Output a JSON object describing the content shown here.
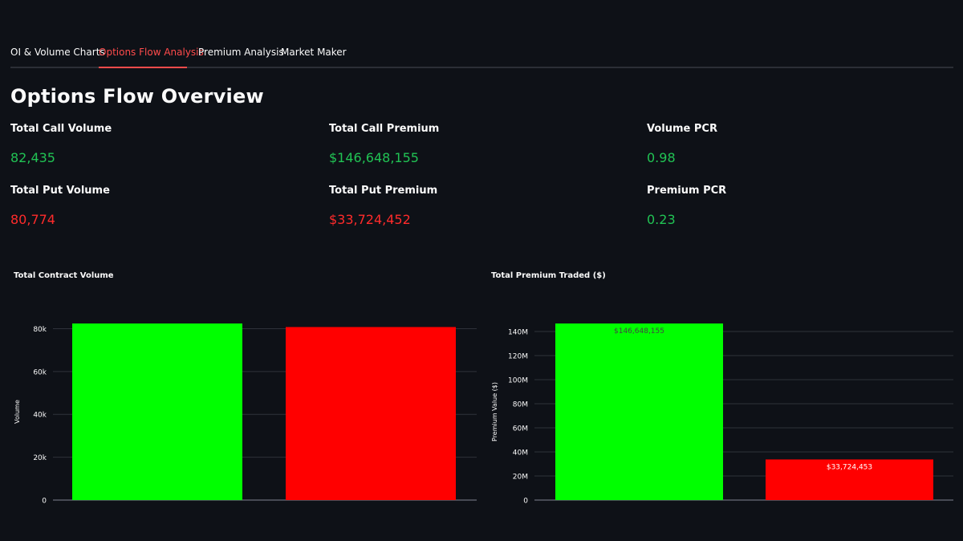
{
  "tabs": [
    {
      "label": "OI & Volume Charts",
      "active": false
    },
    {
      "label": "Options Flow Analysis",
      "active": true
    },
    {
      "label": "Premium Analysis",
      "active": false
    },
    {
      "label": "Market Maker",
      "active": false
    }
  ],
  "page_title": "Options Flow Overview",
  "metrics": {
    "total_call_volume": {
      "label": "Total Call Volume",
      "value": "82,435"
    },
    "total_call_premium": {
      "label": "Total Call Premium",
      "value": "$146,648,155"
    },
    "volume_pcr": {
      "label": "Volume PCR",
      "value": "0.98"
    },
    "total_put_volume": {
      "label": "Total Put Volume",
      "value": "80,774"
    },
    "total_put_premium": {
      "label": "Total Put Premium",
      "value": "$33,724,452"
    },
    "premium_pcr": {
      "label": "Premium PCR",
      "value": "0.23"
    }
  },
  "colors": {
    "call": "#00ff00",
    "put": "#ff0000",
    "positive_text": "#21c354",
    "negative_text": "#ff2b2b",
    "accent": "#ff4b4b"
  },
  "chart_data": [
    {
      "type": "bar",
      "title": "Total Contract Volume",
      "xlabel": "",
      "ylabel": "Volume",
      "ylim": [
        0,
        82435
      ],
      "yticks": [
        0,
        20000,
        40000,
        60000,
        80000
      ],
      "ytick_labels": [
        "0",
        "20k",
        "40k",
        "60k",
        "80k"
      ],
      "values": [
        82435,
        80774
      ],
      "bar_colors": [
        "#00ff00",
        "#ff0000"
      ],
      "data_labels": [
        "",
        ""
      ],
      "grid": true
    },
    {
      "type": "bar",
      "title": "Total Premium Traded ($)",
      "xlabel": "",
      "ylabel": "Premium Value ($)",
      "ylim": [
        0,
        146648155
      ],
      "yticks": [
        0,
        20000000,
        40000000,
        60000000,
        80000000,
        100000000,
        120000000,
        140000000
      ],
      "ytick_labels": [
        "0",
        "20M",
        "40M",
        "60M",
        "80M",
        "100M",
        "120M",
        "140M"
      ],
      "values": [
        146648155,
        33724453
      ],
      "bar_colors": [
        "#00ff00",
        "#ff0000"
      ],
      "data_labels": [
        "$146,648,155",
        "$33,724,453"
      ],
      "grid": true
    }
  ]
}
